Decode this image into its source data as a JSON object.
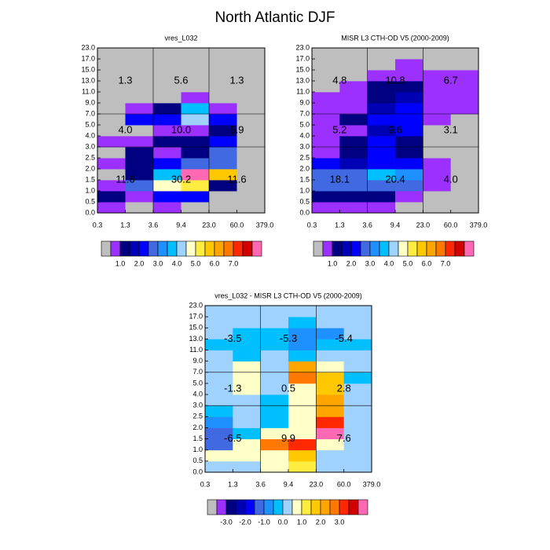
{
  "title": "North Atlantic DJF",
  "chart_data": [
    {
      "type": "heatmap",
      "title": "vres_L032",
      "x_edges": [
        "0.3",
        "1.3",
        "3.6",
        "9.4",
        "23.0",
        "60.0",
        "379.0"
      ],
      "y_edges": [
        "0.0",
        "0.5",
        "1.0",
        "1.5",
        "2.0",
        "2.5",
        "3.0",
        "4.0",
        "5.0",
        "7.0",
        "9.0",
        "11.0",
        "13.0",
        "15.0",
        "17.0",
        "23.0"
      ],
      "values": [
        [
          0.7,
          0,
          0.7,
          0,
          0,
          0
        ],
        [
          1.2,
          0.7,
          2.2,
          2.2,
          0,
          0
        ],
        [
          0.7,
          2.7,
          4.7,
          5.2,
          1.2,
          0
        ],
        [
          0,
          1.2,
          3.7,
          8.5,
          5.7,
          0
        ],
        [
          0.7,
          1.2,
          2.2,
          2.7,
          2.7,
          0
        ],
        [
          0,
          1.2,
          0.7,
          1.2,
          2.7,
          0
        ],
        [
          0.7,
          0.7,
          1.2,
          1.2,
          2.2,
          0
        ],
        [
          0,
          0,
          0.7,
          0.7,
          1.2,
          0
        ],
        [
          0,
          2.2,
          2.2,
          4.2,
          2.2,
          0
        ],
        [
          0,
          0.7,
          1.2,
          3.7,
          0.7,
          0
        ],
        [
          0,
          0,
          0,
          0.7,
          0,
          0
        ],
        [
          0,
          0,
          0,
          0,
          0,
          0
        ],
        [
          0,
          0,
          0,
          0,
          0,
          0
        ],
        [
          0,
          0,
          0,
          0,
          0,
          0
        ],
        [
          0,
          0,
          0,
          0,
          0,
          0
        ]
      ],
      "group_labels": [
        [
          "11.6",
          "30.2",
          "11.6"
        ],
        [
          "4.0",
          "10.0",
          "5.9"
        ],
        [
          "1.3",
          "5.6",
          "1.3"
        ]
      ],
      "levels": [
        0.5,
        1,
        1.5,
        2,
        2.5,
        3,
        3.5,
        4,
        4.5,
        5,
        5.5,
        6,
        6.5,
        7,
        7.5,
        8
      ],
      "colors": [
        "#bebebe",
        "#9b30ff",
        "#000080",
        "#0000b4",
        "#0000ff",
        "#4169e1",
        "#1e90ff",
        "#00bfff",
        "#a0d2ff",
        "#ffffc8",
        "#ffec40",
        "#ffc800",
        "#ffa500",
        "#ff7800",
        "#ff2800",
        "#d20000",
        "#ff69b4"
      ],
      "colorbar_ticks": [
        {
          "value": 1,
          "label": "1.0"
        },
        {
          "value": 2,
          "label": "2.0"
        },
        {
          "value": 3,
          "label": "3.0"
        },
        {
          "value": 4,
          "label": "4.0"
        },
        {
          "value": 5,
          "label": "5.0"
        },
        {
          "value": 6,
          "label": "6.0"
        },
        {
          "value": 7,
          "label": "7.0"
        }
      ]
    },
    {
      "type": "heatmap",
      "title": "MISR L3 CTH-OD V5 (2000-2009)",
      "x_edges": [
        "0.3",
        "1.3",
        "3.6",
        "9.4",
        "23.0",
        "60.0",
        "379.0"
      ],
      "y_edges": [
        "0.0",
        "0.5",
        "1.0",
        "1.5",
        "2.0",
        "2.5",
        "3.0",
        "4.0",
        "5.0",
        "7.0",
        "9.0",
        "11.0",
        "13.0",
        "15.0",
        "17.0",
        "23.0"
      ],
      "values": [
        [
          0.7,
          0.7,
          0.7,
          0,
          0,
          0
        ],
        [
          1.2,
          1.2,
          1.2,
          0.7,
          0,
          0
        ],
        [
          2.7,
          2.7,
          2.7,
          2.7,
          0.7,
          0
        ],
        [
          2.7,
          2.7,
          3.7,
          3.2,
          0.7,
          0
        ],
        [
          2.2,
          1.7,
          2.2,
          2.2,
          0.7,
          0
        ],
        [
          0.7,
          1.2,
          2.2,
          1.2,
          0,
          0
        ],
        [
          0.7,
          1.2,
          2.2,
          1.2,
          0,
          0
        ],
        [
          0.7,
          0.7,
          1.7,
          2.2,
          0,
          0
        ],
        [
          0.7,
          1.2,
          2.2,
          2.2,
          0.7,
          0
        ],
        [
          0.7,
          0.7,
          1.7,
          2.2,
          0.7,
          0.7
        ],
        [
          0.7,
          0.7,
          1.2,
          1.7,
          0.7,
          0.7
        ],
        [
          0,
          0.7,
          1.2,
          1.2,
          0.7,
          0.7
        ],
        [
          0,
          0,
          0.7,
          0.7,
          0.7,
          0.7
        ],
        [
          0,
          0,
          0,
          0.7,
          0,
          0
        ],
        [
          0,
          0,
          0,
          0,
          0,
          0
        ]
      ],
      "group_labels": [
        [
          "18.1",
          "20.4",
          "4.0"
        ],
        [
          "5.2",
          "9.6",
          "3.1"
        ],
        [
          "4.8",
          "10.8",
          "6.7"
        ]
      ],
      "levels": [
        0.5,
        1,
        1.5,
        2,
        2.5,
        3,
        3.5,
        4,
        4.5,
        5,
        5.5,
        6,
        6.5,
        7,
        7.5,
        8
      ],
      "colors": [
        "#bebebe",
        "#9b30ff",
        "#000080",
        "#0000b4",
        "#0000ff",
        "#4169e1",
        "#1e90ff",
        "#00bfff",
        "#a0d2ff",
        "#ffffc8",
        "#ffec40",
        "#ffc800",
        "#ffa500",
        "#ff7800",
        "#ff2800",
        "#d20000",
        "#ff69b4"
      ],
      "colorbar_ticks": [
        {
          "value": 1,
          "label": "1.0"
        },
        {
          "value": 2,
          "label": "2.0"
        },
        {
          "value": 3,
          "label": "3.0"
        },
        {
          "value": 4,
          "label": "4.0"
        },
        {
          "value": 5,
          "label": "5.0"
        },
        {
          "value": 6,
          "label": "6.0"
        },
        {
          "value": 7,
          "label": "7.0"
        }
      ]
    },
    {
      "type": "heatmap",
      "title": "vres_L032 - MISR L3 CTH-OD V5 (2000-2009)",
      "x_edges": [
        "0.3",
        "1.3",
        "3.6",
        "9.4",
        "23.0",
        "60.0",
        "379.0"
      ],
      "y_edges": [
        "0.0",
        "0.5",
        "1.0",
        "1.5",
        "2.0",
        "2.5",
        "3.0",
        "4.0",
        "5.0",
        "7.0",
        "9.0",
        "11.0",
        "13.0",
        "15.0",
        "17.0",
        "23.0"
      ],
      "values": [
        [
          0,
          0,
          0.7,
          1.2,
          0,
          0
        ],
        [
          0.7,
          0.7,
          0.7,
          1.7,
          0,
          0
        ],
        [
          -1.2,
          0.7,
          2.7,
          3.2,
          0.7,
          0
        ],
        [
          -1.2,
          -0.2,
          0.7,
          0.7,
          4.2,
          0
        ],
        [
          -0.7,
          0,
          -0.2,
          0.7,
          3.2,
          0
        ],
        [
          -0.2,
          0,
          -0.2,
          0.7,
          2.2,
          0
        ],
        [
          0,
          0,
          -0.2,
          0.7,
          2.2,
          0
        ],
        [
          0,
          0.7,
          0,
          0.7,
          1.7,
          0
        ],
        [
          0,
          0.7,
          0,
          2.7,
          1.7,
          -0.2
        ],
        [
          0,
          0.7,
          0,
          2.2,
          0.7,
          0
        ],
        [
          0,
          -0.2,
          0,
          -0.2,
          0,
          0
        ],
        [
          -0.2,
          -0.2,
          -0.2,
          -0.7,
          -0.2,
          -0.2
        ],
        [
          0,
          -0.2,
          -0.2,
          -0.7,
          -0.7,
          0
        ],
        [
          0,
          0,
          0,
          -0.2,
          0,
          0
        ],
        [
          0,
          0,
          0,
          0,
          0,
          0
        ]
      ],
      "group_labels": [
        [
          "-6.5",
          "9.9",
          "7.6"
        ],
        [
          "-1.3",
          "0.5",
          "2.8"
        ],
        [
          "-3.5",
          "-5.3",
          "-5.4"
        ]
      ],
      "levels": [
        -3.5,
        -3,
        -2.5,
        -2,
        -1.5,
        -1,
        -0.5,
        0,
        0.5,
        1,
        1.5,
        2,
        2.5,
        3,
        3.5,
        4
      ],
      "colors": [
        "#bebebe",
        "#9b30ff",
        "#000080",
        "#0000b4",
        "#0000ff",
        "#4169e1",
        "#1e90ff",
        "#00bfff",
        "#a0d2ff",
        "#ffffc8",
        "#ffec40",
        "#ffc800",
        "#ffa500",
        "#ff7800",
        "#ff2800",
        "#d20000",
        "#ff69b4"
      ],
      "colorbar_ticks": [
        {
          "value": -3,
          "label": "-3.0"
        },
        {
          "value": -2,
          "label": "-2.0"
        },
        {
          "value": -1,
          "label": "-1.0"
        },
        {
          "value": 0,
          "label": "0.0"
        },
        {
          "value": 1,
          "label": "1.0"
        },
        {
          "value": 2,
          "label": "2.0"
        },
        {
          "value": 3,
          "label": "3.0"
        }
      ]
    }
  ]
}
